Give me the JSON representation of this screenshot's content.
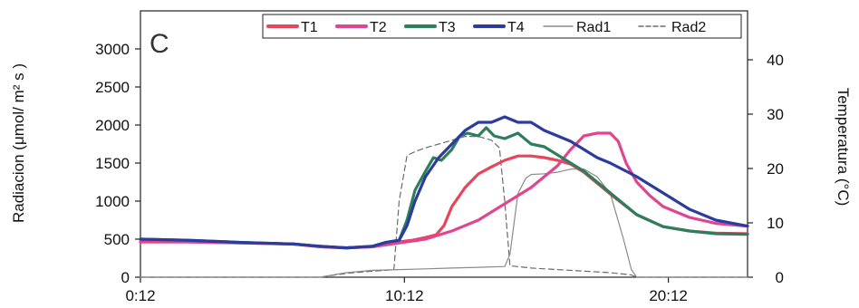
{
  "chart_data": {
    "type": "line",
    "panel_label": "C",
    "x_ticks": [
      "0:12",
      "10:12",
      "20:12"
    ],
    "x_tick_hours": [
      0.2,
      10.2,
      20.2
    ],
    "xlim": [
      0.2,
      23.2
    ],
    "y_left": {
      "label": "Radiacion (μmol/ m² s )",
      "ticks": [
        0,
        500,
        1000,
        1500,
        2000,
        2500,
        3000
      ],
      "lim": [
        0,
        3500
      ]
    },
    "y_right": {
      "label": "Temperatura (°C)",
      "ticks": [
        0,
        10,
        20,
        30,
        40
      ],
      "lim": [
        0,
        49
      ]
    },
    "legend": {
      "placement": "top-right"
    },
    "colors": {
      "T1": "#e8445a",
      "T2": "#e0458f",
      "T3": "#2e7d5b",
      "T4": "#2b3b9e",
      "Rad1": "#8a8a8a",
      "Rad2": "#6a6a6a"
    },
    "series": [
      {
        "name": "T1",
        "axis": "right",
        "style": "solid",
        "x": [
          0.2,
          2,
          4,
          6,
          7,
          8,
          9,
          9.5,
          10,
          10.5,
          11,
          11.4,
          11.7,
          12,
          12.5,
          13,
          13.5,
          14,
          14.5,
          15,
          15.5,
          16,
          16.5,
          17,
          17.5,
          18,
          19,
          20,
          21,
          22,
          23.2
        ],
        "y": [
          6.5,
          6.5,
          6.3,
          6.1,
          5.6,
          5.4,
          5.6,
          6.0,
          6.5,
          6.8,
          7.3,
          7.8,
          9.5,
          13,
          16.5,
          19,
          20.3,
          21.5,
          22.3,
          22.3,
          22,
          21.5,
          20.8,
          19.3,
          17.3,
          15.3,
          11.5,
          9.3,
          8.5,
          8.1,
          8.0
        ]
      },
      {
        "name": "T2",
        "axis": "right",
        "style": "solid",
        "x": [
          0.2,
          2,
          4,
          6,
          7,
          8,
          9,
          10,
          11,
          12,
          13,
          14,
          15,
          16,
          16.5,
          17,
          17.5,
          18,
          18.3,
          18.6,
          19,
          19.5,
          20,
          21,
          22,
          23.2
        ],
        "y": [
          6.5,
          6.5,
          6.3,
          6.1,
          5.6,
          5.4,
          5.6,
          6.3,
          7.0,
          8.5,
          10.5,
          13.5,
          16.5,
          20.5,
          23.5,
          26.0,
          26.5,
          26.5,
          25.0,
          21.0,
          17.5,
          15.0,
          13.0,
          11.0,
          9.9,
          9.4
        ]
      },
      {
        "name": "T3",
        "axis": "right",
        "style": "solid",
        "x": [
          0.2,
          2,
          4,
          6,
          7,
          8,
          9,
          9.5,
          10,
          10.3,
          10.6,
          11,
          11.3,
          11.6,
          12,
          12.3,
          12.6,
          13,
          13.3,
          13.6,
          14,
          14.5,
          15,
          15.5,
          16,
          16.5,
          17,
          17.5,
          18,
          19,
          20,
          21,
          22,
          23.2
        ],
        "y": [
          7.0,
          6.8,
          6.4,
          6.1,
          5.7,
          5.4,
          5.7,
          6.4,
          6.8,
          10.5,
          16,
          19.5,
          22.0,
          21.5,
          23.5,
          26.0,
          26.5,
          26.0,
          27.5,
          26.0,
          25.5,
          26.5,
          24.5,
          24.0,
          22.5,
          21.0,
          19.5,
          17.5,
          15.5,
          11.5,
          9.3,
          8.5,
          8.0,
          7.9
        ]
      },
      {
        "name": "T4",
        "axis": "right",
        "style": "solid",
        "x": [
          0.2,
          2,
          4,
          6,
          7,
          8,
          9,
          9.5,
          10,
          10.3,
          10.6,
          11,
          11.5,
          12,
          12.5,
          13,
          13.5,
          14,
          14.5,
          15,
          15.5,
          16,
          16.5,
          17,
          17.5,
          18,
          19,
          20,
          21,
          22,
          23.2
        ],
        "y": [
          7.0,
          6.8,
          6.4,
          6.1,
          5.7,
          5.4,
          5.7,
          6.4,
          6.8,
          9.5,
          14,
          18.5,
          22.0,
          24.5,
          27.0,
          28.5,
          28.5,
          29.5,
          28.5,
          28.5,
          27.0,
          26.0,
          25.0,
          23.5,
          22.0,
          21.0,
          18.5,
          15.5,
          12.5,
          10.5,
          9.4
        ]
      },
      {
        "name": "Rad1",
        "axis": "left",
        "style": "solid",
        "x": [
          0.2,
          7,
          8,
          9,
          10,
          11,
          12,
          13,
          14,
          14.2,
          14.5,
          14.8,
          15,
          15.5,
          16,
          16.5,
          17,
          17.5,
          18,
          18.5,
          18.8,
          19,
          23.2
        ],
        "y": [
          0,
          0,
          60,
          90,
          100,
          110,
          120,
          130,
          140,
          300,
          1100,
          1300,
          1350,
          1360,
          1380,
          1420,
          1420,
          1320,
          1100,
          500,
          100,
          0,
          0
        ]
      },
      {
        "name": "Rad2",
        "axis": "left",
        "style": "dashed",
        "x": [
          0.2,
          7,
          8,
          9,
          9.5,
          9.8,
          10,
          10.3,
          10.6,
          11,
          11.5,
          12,
          12.5,
          13,
          13.5,
          13.8,
          14,
          14.2,
          15,
          16,
          17,
          18,
          18.8,
          19,
          23.2
        ],
        "y": [
          0,
          0,
          50,
          80,
          90,
          100,
          1000,
          1600,
          1650,
          1700,
          1750,
          1800,
          1850,
          1850,
          1800,
          1700,
          1000,
          150,
          120,
          100,
          80,
          60,
          30,
          0,
          0
        ]
      }
    ]
  }
}
